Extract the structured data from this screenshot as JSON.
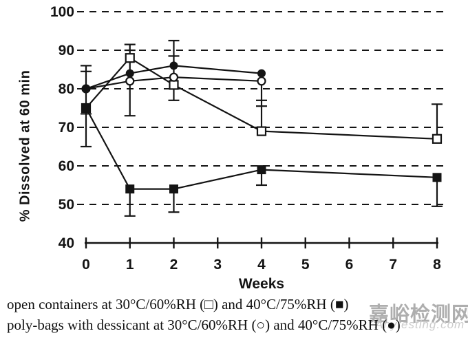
{
  "colors": {
    "ink": "#141414",
    "background": "#ffffff",
    "watermark_gray": "#a1a1a1"
  },
  "watermark": {
    "text": "嘉峪检测网",
    "subtext": "Anytesting.com"
  },
  "caption": {
    "line1": "open containers at 30°C/60%RH (□) and 40°C/75%RH (■)",
    "line2": "poly-bags with dessicant at 30°C/60%RH (○) and 40°C/75%RH (●)"
  },
  "chart_data": {
    "type": "line",
    "title": "",
    "xlabel": "Weeks",
    "ylabel": "% Dissolved at 60 min",
    "xlim": [
      0,
      8
    ],
    "ylim": [
      40,
      100
    ],
    "xticks": [
      0,
      1,
      2,
      3,
      4,
      5,
      6,
      7,
      8
    ],
    "yticks": [
      40,
      50,
      60,
      70,
      80,
      90,
      100
    ],
    "grid": "horizontal-dashed",
    "legend_position": "caption-below",
    "series": [
      {
        "name": "open containers at 30°C/60%RH",
        "marker": "open-square",
        "x": [
          0,
          1,
          2,
          4,
          8
        ],
        "y": [
          75,
          88,
          81,
          69,
          67
        ]
      },
      {
        "name": "open containers at 40°C/75%RH",
        "marker": "filled-square",
        "x": [
          0,
          1,
          2,
          4,
          8
        ],
        "y": [
          75,
          54,
          54,
          59,
          57
        ]
      },
      {
        "name": "poly-bags with dessicant at 30°C/60%RH",
        "marker": "open-circle",
        "x": [
          0,
          1,
          2,
          4
        ],
        "y": [
          80,
          82,
          83,
          82
        ]
      },
      {
        "name": "poly-bags with dessicant at 40°C/75%RH",
        "marker": "filled-circle",
        "x": [
          0,
          1,
          2,
          4
        ],
        "y": [
          80,
          84,
          86,
          84
        ]
      }
    ],
    "error_bars": [
      {
        "x": 0,
        "y_low": 65,
        "y_high": 86,
        "caps": [
          65,
          73.5,
          84.5,
          86
        ]
      },
      {
        "x": 1,
        "y_low": 73,
        "y_high": 91.5,
        "caps": [
          73,
          90,
          91.5
        ]
      },
      {
        "x": 1,
        "y_low": 47,
        "y_high": 54,
        "caps": [
          47
        ]
      },
      {
        "x": 2,
        "y_low": 77,
        "y_high": 92.5,
        "caps": [
          77,
          88.5,
          92.5
        ]
      },
      {
        "x": 2,
        "y_low": 48,
        "y_high": 54,
        "caps": [
          48
        ]
      },
      {
        "x": 4,
        "y_low": 69,
        "y_high": 84,
        "caps": [
          75.5,
          77
        ]
      },
      {
        "x": 4,
        "y_low": 55,
        "y_high": 59,
        "caps": [
          55
        ]
      },
      {
        "x": 8,
        "y_low": 67,
        "y_high": 76,
        "caps": [
          76
        ]
      },
      {
        "x": 8,
        "y_low": 49.5,
        "y_high": 57,
        "caps": [
          49.5
        ]
      }
    ]
  }
}
